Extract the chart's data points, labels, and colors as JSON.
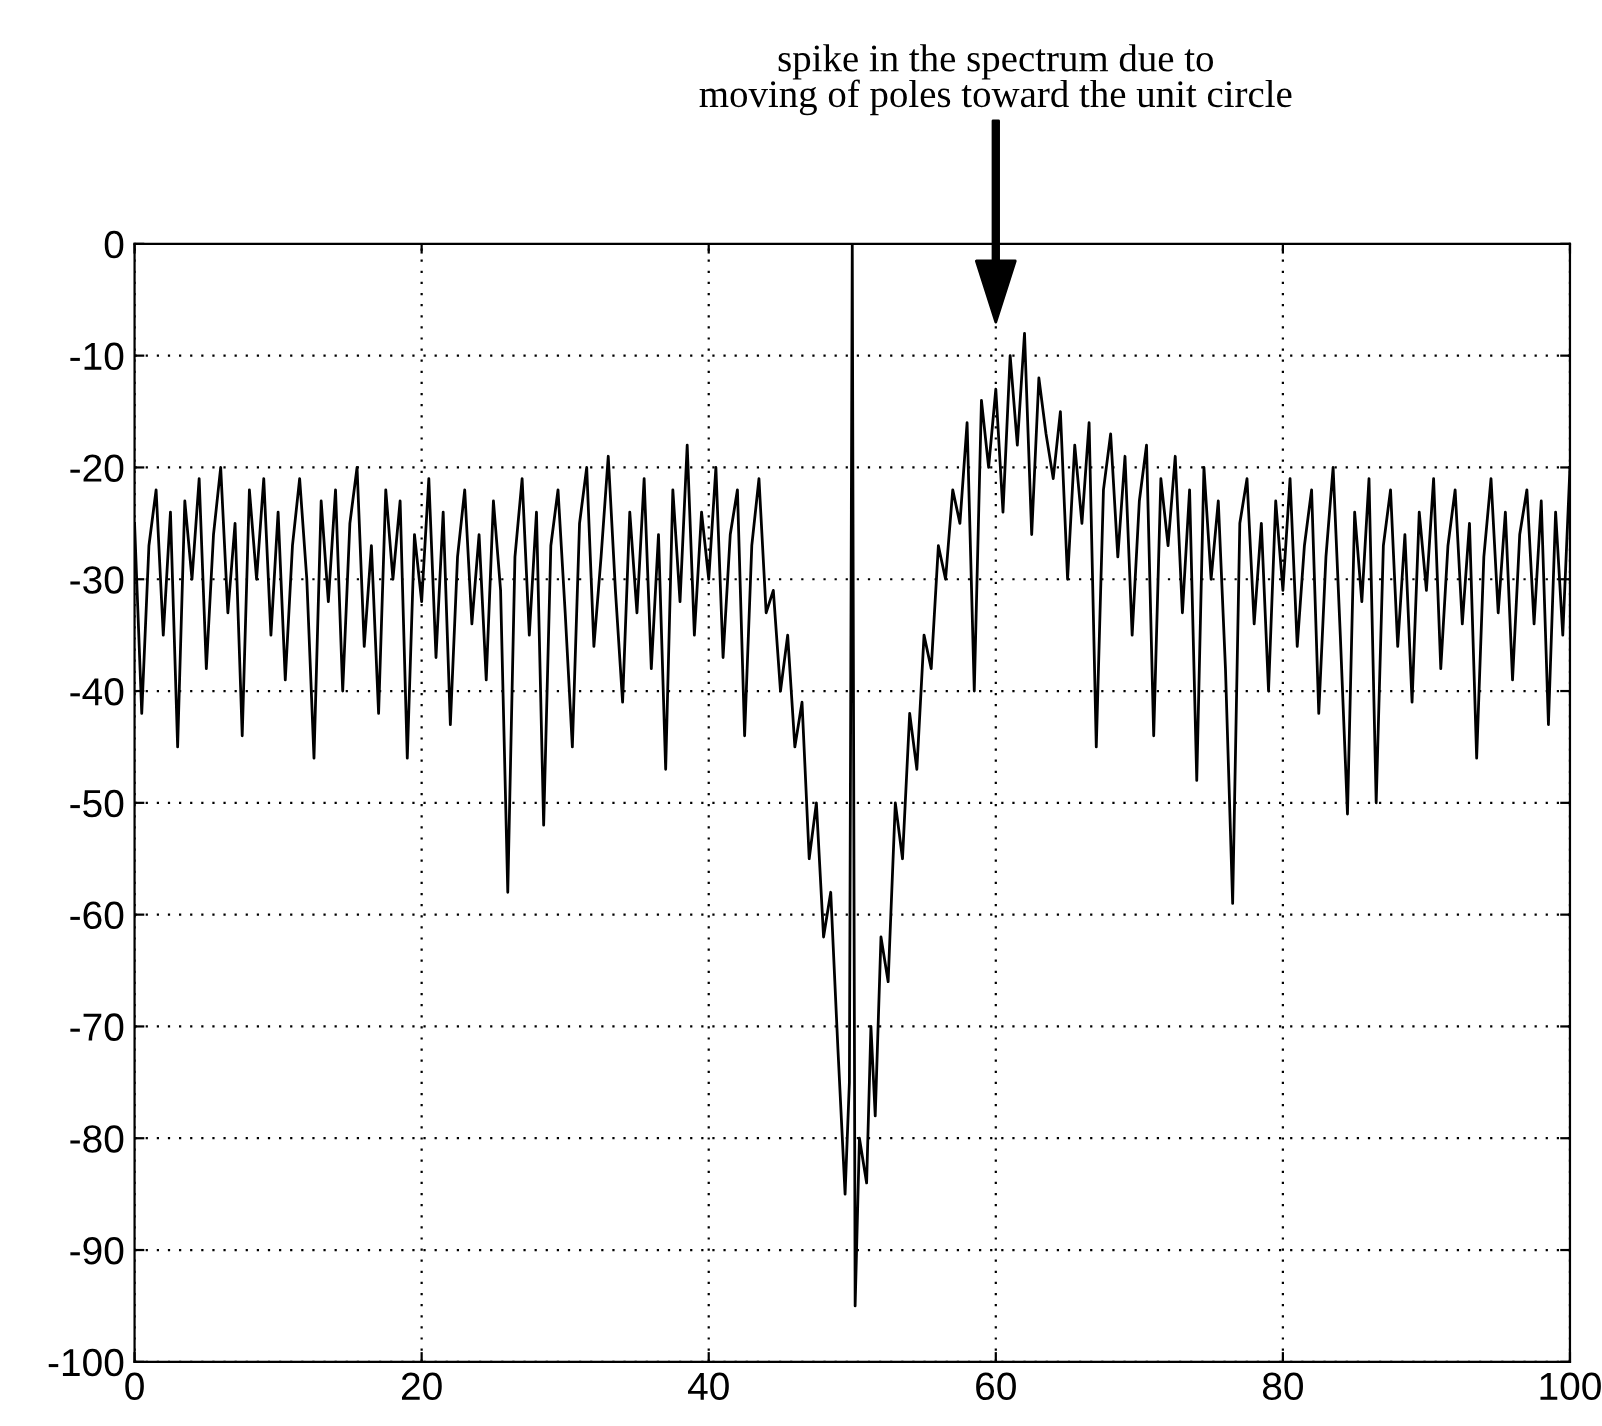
{
  "chart_data": {
    "type": "line",
    "x": [
      0,
      0.5,
      1,
      1.5,
      2,
      2.5,
      3,
      3.5,
      4,
      4.5,
      5,
      5.5,
      6,
      6.5,
      7,
      7.5,
      8,
      8.5,
      9,
      9.5,
      10,
      10.5,
      11,
      11.5,
      12,
      12.5,
      13,
      13.5,
      14,
      14.5,
      15,
      15.5,
      16,
      16.5,
      17,
      17.5,
      18,
      18.5,
      19,
      19.5,
      20,
      20.5,
      21,
      21.5,
      22,
      22.5,
      23,
      23.5,
      24,
      24.5,
      25,
      25.5,
      26,
      26.5,
      27,
      27.5,
      28,
      28.5,
      29,
      29.5,
      30,
      30.5,
      31,
      31.5,
      32,
      32.5,
      33,
      33.5,
      34,
      34.5,
      35,
      35.5,
      36,
      36.5,
      37,
      37.5,
      38,
      38.5,
      39,
      39.5,
      40,
      40.5,
      41,
      41.5,
      42,
      42.5,
      43,
      43.5,
      44,
      44.5,
      45,
      45.5,
      46,
      46.5,
      47,
      47.5,
      48,
      48.5,
      49,
      49.5,
      49.8,
      50,
      50.2,
      50.5,
      51,
      51.3,
      51.6,
      52,
      52.5,
      53,
      53.5,
      54,
      54.5,
      55,
      55.5,
      56,
      56.5,
      57,
      57.5,
      58,
      58.5,
      59,
      59.5,
      60,
      60.5,
      61,
      61.5,
      62,
      62.5,
      63,
      63.5,
      64,
      64.5,
      65,
      65.5,
      66,
      66.5,
      67,
      67.5,
      68,
      68.5,
      69,
      69.5,
      70,
      70.5,
      71,
      71.5,
      72,
      72.5,
      73,
      73.5,
      74,
      74.5,
      75,
      75.5,
      76,
      76.5,
      77,
      77.5,
      78,
      78.5,
      79,
      79.5,
      80,
      80.5,
      81,
      81.5,
      82,
      82.5,
      83,
      83.5,
      84,
      84.5,
      85,
      85.5,
      86,
      86.5,
      87,
      87.5,
      88,
      88.5,
      89,
      89.5,
      90,
      90.5,
      91,
      91.5,
      92,
      92.5,
      93,
      93.5,
      94,
      94.5,
      95,
      95.5,
      96,
      96.5,
      97,
      97.5,
      98,
      98.5,
      99,
      99.5,
      100
    ],
    "series": [
      {
        "color": "#000000",
        "values": [
          -25,
          -42,
          -27,
          -22,
          -35,
          -24,
          -45,
          -23,
          -30,
          -21,
          -38,
          -26,
          -20,
          -33,
          -25,
          -44,
          -22,
          -30,
          -21,
          -35,
          -24,
          -39,
          -27,
          -21,
          -30,
          -46,
          -23,
          -32,
          -22,
          -40,
          -25,
          -20,
          -36,
          -27,
          -42,
          -22,
          -30,
          -23,
          -46,
          -26,
          -32,
          -21,
          -37,
          -24,
          -43,
          -28,
          -22,
          -34,
          -26,
          -39,
          -23,
          -31,
          -58,
          -28,
          -21,
          -35,
          -24,
          -52,
          -27,
          -22,
          -33,
          -45,
          -25,
          -20,
          -36,
          -28,
          -19,
          -31,
          -41,
          -24,
          -33,
          -21,
          -38,
          -26,
          -47,
          -22,
          -32,
          -18,
          -35,
          -24,
          -30,
          -20,
          -37,
          -26,
          -22,
          -44,
          -27,
          -21,
          -33,
          -31,
          -40,
          -35,
          -45,
          -41,
          -55,
          -50,
          -62,
          -58,
          -72,
          -85,
          -75,
          0,
          -95,
          -80,
          -84,
          -70,
          -78,
          -62,
          -66,
          -50,
          -55,
          -42,
          -47,
          -35,
          -38,
          -27,
          -30,
          -22,
          -25,
          -16,
          -40,
          -14,
          -20,
          -13,
          -24,
          -10,
          -18,
          -8,
          -26,
          -12,
          -17,
          -21,
          -15,
          -30,
          -18,
          -25,
          -16,
          -45,
          -22,
          -17,
          -28,
          -19,
          -35,
          -23,
          -18,
          -44,
          -21,
          -27,
          -19,
          -33,
          -22,
          -48,
          -20,
          -30,
          -23,
          -38,
          -59,
          -25,
          -21,
          -34,
          -25,
          -40,
          -23,
          -31,
          -21,
          -36,
          -27,
          -22,
          -42,
          -28,
          -20,
          -35,
          -51,
          -24,
          -32,
          -21,
          -50,
          -27,
          -22,
          -36,
          -26,
          -41,
          -24,
          -31,
          -21,
          -38,
          -27,
          -22,
          -34,
          -25,
          -46,
          -28,
          -21,
          -33,
          -24,
          -39,
          -26,
          -22,
          -34,
          -23,
          -43,
          -24,
          -35,
          -20
        ]
      }
    ],
    "xlim": [
      0,
      100
    ],
    "ylim": [
      -100,
      0
    ],
    "xticks": [
      0,
      20,
      40,
      60,
      80,
      100
    ],
    "yticks": [
      -100,
      -90,
      -80,
      -70,
      -60,
      -50,
      -40,
      -30,
      -20,
      -10,
      0
    ],
    "grid": true,
    "line_style": "solid",
    "marker": "none",
    "annotations": [
      "spike in the spectrum due to\nmoving of poles toward the unit circle"
    ]
  }
}
